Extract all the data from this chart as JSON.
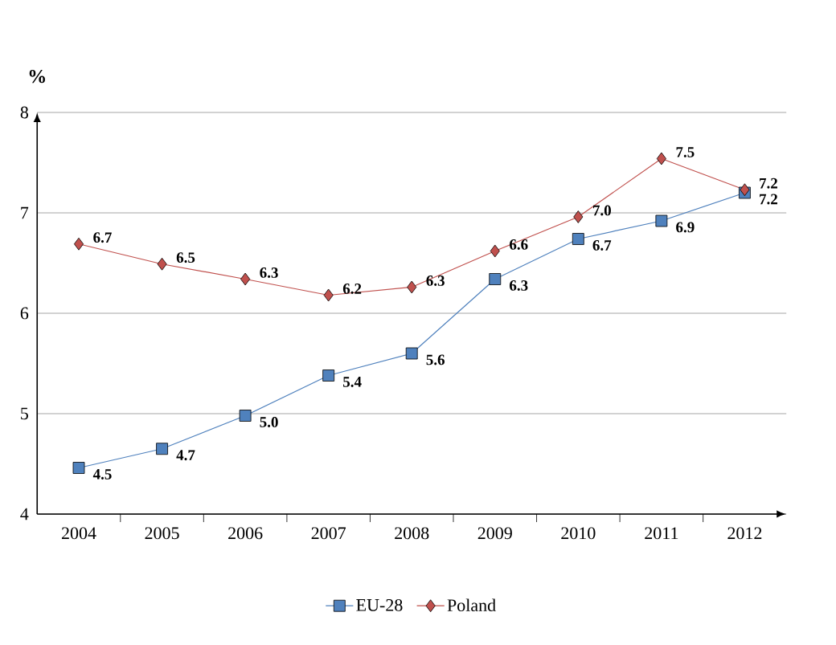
{
  "chart_data": {
    "type": "line",
    "ylabel": "%",
    "categories": [
      "2004",
      "2005",
      "2006",
      "2007",
      "2008",
      "2009",
      "2010",
      "2011",
      "2012"
    ],
    "series": [
      {
        "name": "EU-28",
        "color": "#4f81bd",
        "marker": "square",
        "values": [
          4.46,
          4.65,
          4.98,
          5.38,
          5.6,
          6.34,
          6.74,
          6.92,
          7.2
        ],
        "value_labels": [
          "4.5",
          "4.7",
          "5.0",
          "5.4",
          "5.6",
          "6.3",
          "6.7",
          "6.9",
          "7.2"
        ]
      },
      {
        "name": "Poland",
        "color": "#c0504d",
        "marker": "diamond",
        "values": [
          6.69,
          6.49,
          6.34,
          6.18,
          6.26,
          6.62,
          6.96,
          7.54,
          7.23
        ],
        "value_labels": [
          "6.7",
          "6.5",
          "6.3",
          "6.2",
          "6.3",
          "6.6",
          "7.0",
          "7.5",
          "7.2"
        ]
      }
    ],
    "ylim": [
      4,
      8
    ],
    "yticks": [
      4,
      5,
      6,
      7,
      8
    ],
    "grid": "y",
    "legend": "bottom"
  }
}
